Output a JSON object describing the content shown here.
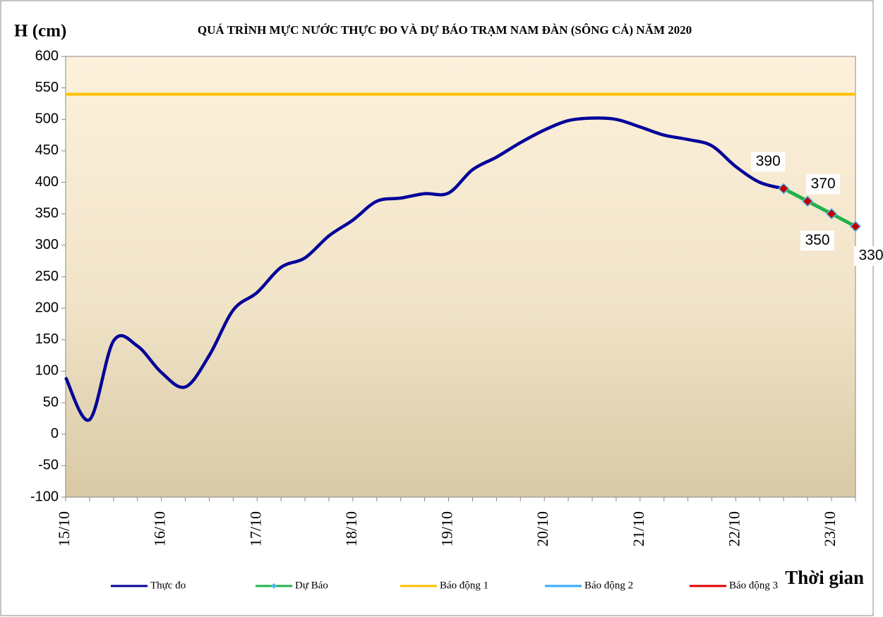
{
  "chart_data": {
    "type": "line",
    "title": "QUÁ TRÌNH MỰC NƯỚC THỰC ĐO VÀ DỰ BÁO TRẠM NAM ĐÀN (SÔNG CẢ) NĂM 2020",
    "y_label": "H (cm)",
    "x_label": "Thời gian",
    "categories": [
      "15/10",
      null,
      null,
      null,
      "16/10",
      null,
      null,
      null,
      "17/10",
      null,
      null,
      null,
      "18/10",
      null,
      null,
      null,
      "19/10",
      null,
      null,
      null,
      "20/10",
      null,
      null,
      null,
      "21/10",
      null,
      null,
      null,
      "22/10",
      null,
      null,
      null,
      "23/10",
      null
    ],
    "series": [
      {
        "name": "Thực đo",
        "color": "#000099",
        "values": [
          90,
          23,
          148,
          140,
          98,
          75,
          125,
          197,
          225,
          265,
          280,
          315,
          340,
          370,
          375,
          382,
          383,
          420,
          440,
          463,
          483,
          498,
          502,
          500,
          488,
          475,
          468,
          458,
          425,
          400,
          390,
          null,
          null,
          null
        ]
      },
      {
        "name": "Dự Báo",
        "color": "#22b14c",
        "marker_color": "#c00000",
        "marker_edge": "#4fb8e8",
        "data_labels": true,
        "values": [
          null,
          null,
          null,
          null,
          null,
          null,
          null,
          null,
          null,
          null,
          null,
          null,
          null,
          null,
          null,
          null,
          null,
          null,
          null,
          null,
          null,
          null,
          null,
          null,
          null,
          null,
          null,
          null,
          null,
          null,
          390,
          370,
          350,
          330
        ]
      }
    ],
    "alarms": [
      {
        "name": "Báo động 1",
        "color": "#ffc000",
        "value": 540
      },
      {
        "name": "Báo động 2",
        "color": "#33aaff"
      },
      {
        "name": "Báo động 3",
        "color": "#e00000"
      }
    ],
    "ylim": [
      -100,
      600
    ],
    "yticks": [
      -100,
      -50,
      0,
      50,
      100,
      150,
      200,
      250,
      300,
      350,
      400,
      450,
      500,
      550,
      600
    ]
  }
}
